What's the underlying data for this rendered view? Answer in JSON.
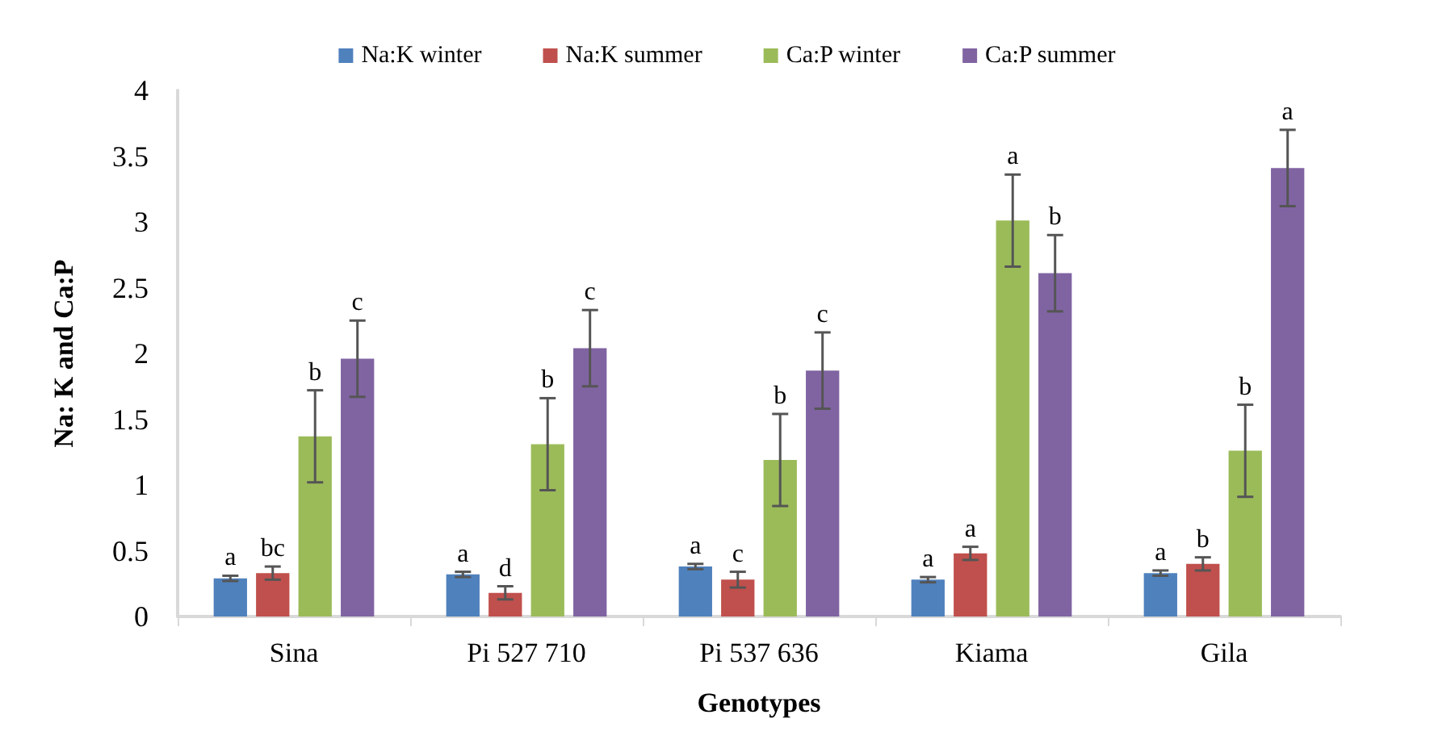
{
  "chart_data": {
    "type": "bar",
    "xlabel": "Genotypes",
    "ylabel": "Na: K and Ca:P",
    "categories": [
      "Sina",
      "Pi 527 710",
      "Pi 537 636",
      "Kiama",
      "Gila"
    ],
    "series": [
      {
        "name": "Na:K winter",
        "color": "#4f81bd",
        "values": [
          0.29,
          0.32,
          0.38,
          0.28,
          0.33
        ],
        "errors": [
          0.02,
          0.02,
          0.02,
          0.02,
          0.02
        ],
        "value_labels": [
          "a",
          "a",
          "a",
          "a",
          "a"
        ]
      },
      {
        "name": "Na:K summer",
        "color": "#c0504d",
        "values": [
          0.33,
          0.18,
          0.28,
          0.48,
          0.4
        ],
        "errors": [
          0.05,
          0.05,
          0.06,
          0.05,
          0.05
        ],
        "value_labels": [
          "bc",
          "d",
          "c",
          "a",
          "b"
        ]
      },
      {
        "name": "Ca:P winter",
        "color": "#9bbb59",
        "values": [
          1.37,
          1.31,
          1.19,
          3.01,
          1.26
        ],
        "errors": [
          0.35,
          0.35,
          0.35,
          0.35,
          0.35
        ],
        "value_labels": [
          "b",
          "b",
          "b",
          "a",
          "b"
        ]
      },
      {
        "name": "Ca:P summer",
        "color": "#8064a2",
        "values": [
          1.96,
          2.04,
          1.87,
          2.61,
          3.41
        ],
        "errors": [
          0.29,
          0.29,
          0.29,
          0.29,
          0.29
        ],
        "value_labels": [
          "c",
          "c",
          "c",
          "b",
          "a"
        ]
      }
    ],
    "ylim": [
      0,
      4
    ],
    "yticks": [
      0,
      0.5,
      1,
      1.5,
      2,
      2.5,
      3,
      3.5,
      4
    ],
    "grid": false,
    "legend": "top"
  }
}
